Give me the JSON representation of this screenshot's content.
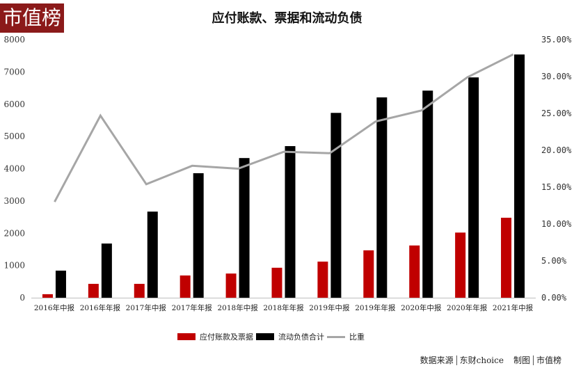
{
  "header": {
    "logo_text": "市值榜",
    "title": "应付账款、票据和流动负债"
  },
  "colors": {
    "logo_bg": "#8b1a1a",
    "series_red": "#c00000",
    "series_black": "#000000",
    "series_line": "#a6a6a6"
  },
  "legend": {
    "items": [
      {
        "label": "应付账款及票据",
        "type": "bar",
        "color": "#c00000"
      },
      {
        "label": "流动负债合计",
        "type": "bar",
        "color": "#000000"
      },
      {
        "label": "比重",
        "type": "line",
        "color": "#a6a6a6"
      }
    ]
  },
  "footer": {
    "source_label": "数据来源",
    "source_value": "东财choice",
    "made_label": "制图",
    "made_value": "市值榜"
  },
  "chart_data": {
    "type": "bar",
    "title": "应付账款、票据和流动负债",
    "xlabel": "",
    "ylabel": "",
    "ylim": [
      0,
      8000
    ],
    "y2lim": [
      0,
      0.35
    ],
    "y_ticks": [
      "0",
      "1000",
      "2000",
      "3000",
      "4000",
      "5000",
      "6000",
      "7000",
      "8000"
    ],
    "y2_ticks": [
      "0.00%",
      "5.00%",
      "10.00%",
      "15.00%",
      "20.00%",
      "25.00%",
      "30.00%",
      "35.00%"
    ],
    "grid": false,
    "legend_position": "bottom",
    "categories": [
      "2016年中报",
      "2016年年报",
      "2017年中报",
      "2017年年报",
      "2018年中报",
      "2018年年报",
      "2019年中报",
      "2019年年报",
      "2020年中报",
      "2020年年报",
      "2021年中报"
    ],
    "series": [
      {
        "name": "应付账款及票据",
        "type": "bar",
        "axis": "left",
        "values": [
          110,
          430,
          430,
          690,
          750,
          930,
          1120,
          1470,
          1620,
          2020,
          2480
        ]
      },
      {
        "name": "流动负债合计",
        "type": "bar",
        "axis": "left",
        "values": [
          840,
          1680,
          2670,
          3860,
          4330,
          4700,
          5730,
          6210,
          6420,
          6830,
          7540
        ]
      },
      {
        "name": "比重",
        "type": "line",
        "axis": "right",
        "values": [
          0.13,
          0.247,
          0.154,
          0.179,
          0.175,
          0.198,
          0.196,
          0.239,
          0.254,
          0.299,
          0.33
        ]
      }
    ]
  }
}
